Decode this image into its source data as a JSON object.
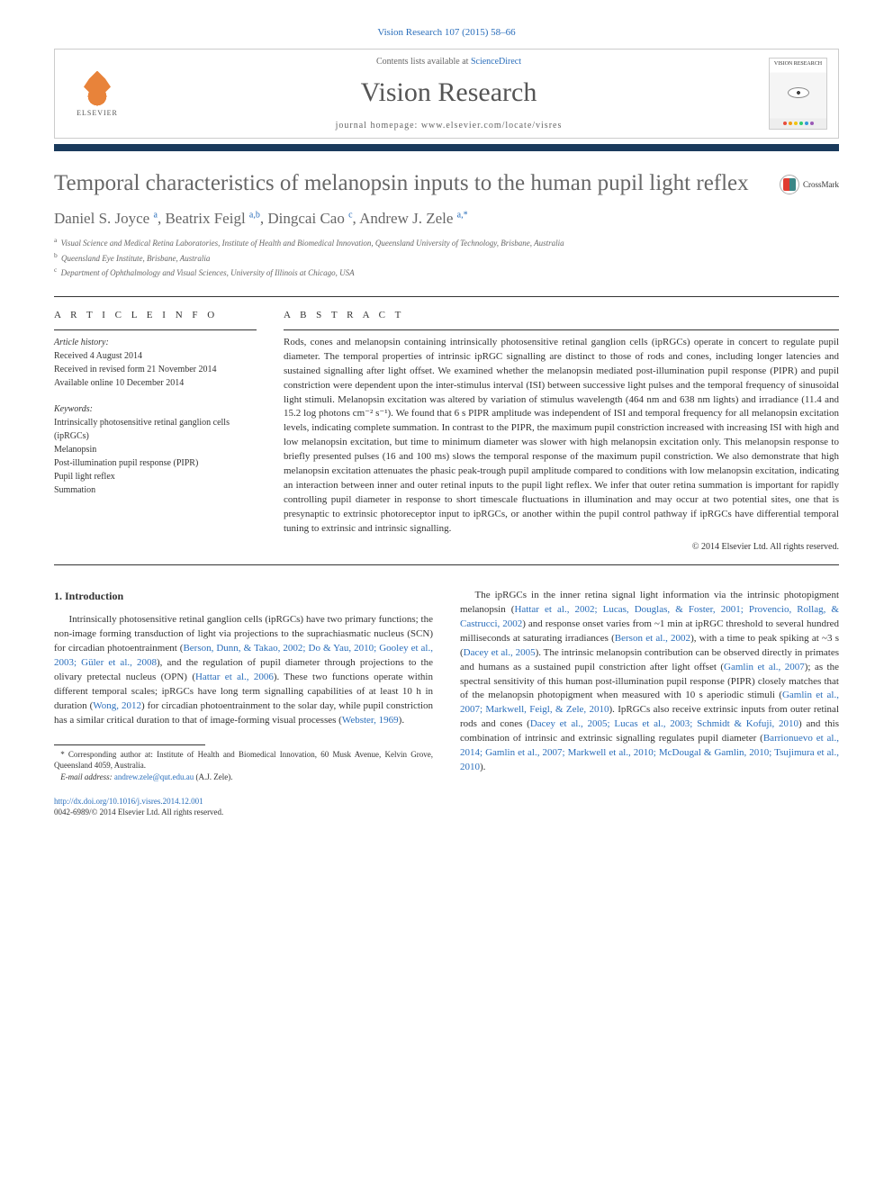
{
  "journal_ref": "Vision Research 107 (2015) 58–66",
  "header": {
    "publisher": "ELSEVIER",
    "contents_prefix": "Contents lists available at ",
    "contents_link": "ScienceDirect",
    "journal_name": "Vision Research",
    "homepage_prefix": "journal homepage: ",
    "homepage_url": "www.elsevier.com/locate/visres",
    "cover_title": "VISION RESEARCH"
  },
  "crossmark": "CrossMark",
  "title": "Temporal characteristics of melanopsin inputs to the human pupil light reflex",
  "authors_html": "Daniel S. Joyce <sup>a</sup>, Beatrix Feigl <sup>a,b</sup>, Dingcai Cao <sup>c</sup>, Andrew J. Zele <sup>a,*</sup>",
  "affiliations": [
    {
      "sup": "a",
      "text": "Visual Science and Medical Retina Laboratories, Institute of Health and Biomedical Innovation, Queensland University of Technology, Brisbane, Australia"
    },
    {
      "sup": "b",
      "text": "Queensland Eye Institute, Brisbane, Australia"
    },
    {
      "sup": "c",
      "text": "Department of Ophthalmology and Visual Sciences, University of Illinois at Chicago, USA"
    }
  ],
  "article_info_label": "A R T I C L E   I N F O",
  "abstract_label": "A B S T R A C T",
  "history": {
    "label": "Article history:",
    "received": "Received 4 August 2014",
    "revised": "Received in revised form 21 November 2014",
    "online": "Available online 10 December 2014"
  },
  "keywords": {
    "label": "Keywords:",
    "items": [
      "Intrinsically photosensitive retinal ganglion cells (ipRGCs)",
      "Melanopsin",
      "Post-illumination pupil response (PIPR)",
      "Pupil light reflex",
      "Summation"
    ]
  },
  "abstract": "Rods, cones and melanopsin containing intrinsically photosensitive retinal ganglion cells (ipRGCs) operate in concert to regulate pupil diameter. The temporal properties of intrinsic ipRGC signalling are distinct to those of rods and cones, including longer latencies and sustained signalling after light offset. We examined whether the melanopsin mediated post-illumination pupil response (PIPR) and pupil constriction were dependent upon the inter-stimulus interval (ISI) between successive light pulses and the temporal frequency of sinusoidal light stimuli. Melanopsin excitation was altered by variation of stimulus wavelength (464 nm and 638 nm lights) and irradiance (11.4 and 15.2 log photons cm⁻² s⁻¹). We found that 6 s PIPR amplitude was independent of ISI and temporal frequency for all melanopsin excitation levels, indicating complete summation. In contrast to the PIPR, the maximum pupil constriction increased with increasing ISI with high and low melanopsin excitation, but time to minimum diameter was slower with high melanopsin excitation only. This melanopsin response to briefly presented pulses (16 and 100 ms) slows the temporal response of the maximum pupil constriction. We also demonstrate that high melanopsin excitation attenuates the phasic peak-trough pupil amplitude compared to conditions with low melanopsin excitation, indicating an interaction between inner and outer retinal inputs to the pupil light reflex. We infer that outer retina summation is important for rapidly controlling pupil diameter in response to short timescale fluctuations in illumination and may occur at two potential sites, one that is presynaptic to extrinsic photoreceptor input to ipRGCs, or another within the pupil control pathway if ipRGCs have differential temporal tuning to extrinsic and intrinsic signalling.",
  "abstract_copyright": "© 2014 Elsevier Ltd. All rights reserved.",
  "intro": {
    "heading": "1. Introduction",
    "col1_p1_pre": "Intrinsically photosensitive retinal ganglion cells (ipRGCs) have two primary functions; the non-image forming transduction of light via projections to the suprachiasmatic nucleus (SCN) for circadian photoentrainment (",
    "col1_cite1": "Berson, Dunn, & Takao, 2002; Do & Yau, 2010; Gooley et al., 2003; Güler et al., 2008",
    "col1_p1_mid1": "), and the regulation of pupil diameter through projections to the olivary pretectal nucleus (OPN) (",
    "col1_cite2": "Hattar et al., 2006",
    "col1_p1_mid2": "). These two functions operate within different temporal scales; ipRGCs have long term signalling capabilities of at least 10 h in duration (",
    "col1_cite3": "Wong, 2012",
    "col1_p1_mid3": ") for circadian photoentrainment to the solar day, while pupil constriction has a similar critical duration to that of image-forming visual processes (",
    "col1_cite4": "Webster, 1969",
    "col1_p1_end": ").",
    "col2_p1_pre": "The ipRGCs in the inner retina signal light information via the intrinsic photopigment melanopsin (",
    "col2_cite1": "Hattar et al., 2002; Lucas, Douglas, & Foster, 2001; Provencio, Rollag, & Castrucci, 2002",
    "col2_p1_mid1": ") and response onset varies from ~1 min at ipRGC threshold to several hundred milliseconds at saturating irradiances (",
    "col2_cite2": "Berson et al., 2002",
    "col2_p1_mid2": "), with a time to peak spiking at ~3 s (",
    "col2_cite3": "Dacey et al., 2005",
    "col2_p1_mid3": "). The intrinsic melanopsin contribution can be observed directly in primates and humans as a sustained pupil constriction after light offset (",
    "col2_cite4": "Gamlin et al., 2007",
    "col2_p1_mid4": "); as the spectral sensitivity of this human post-illumination pupil response (PIPR) closely matches that of the melanopsin photopigment when measured with 10 s aperiodic stimuli (",
    "col2_cite5": "Gamlin et al., 2007; Markwell, Feigl, & Zele, 2010",
    "col2_p1_mid5": "). IpRGCs also receive extrinsic inputs from outer retinal rods and cones (",
    "col2_cite6": "Dacey et al., 2005; Lucas et al., 2003; Schmidt & Kofuji, 2010",
    "col2_p1_mid6": ") and this combination of intrinsic and extrinsic signalling regulates pupil diameter (",
    "col2_cite7": "Barrionuevo et al., 2014; Gamlin et al., 2007; Markwell et al., 2010; McDougal & Gamlin, 2010; Tsujimura et al., 2010",
    "col2_p1_end": ")."
  },
  "footnote": {
    "corr_label": "* Corresponding author at: ",
    "corr_text": "Institute of Health and Biomedical Innovation, 60 Musk Avenue, Kelvin Grove, Queensland 4059, Australia.",
    "email_label": "E-mail address: ",
    "email": "andrew.zele@qut.edu.au",
    "email_suffix": " (A.J. Zele)."
  },
  "doi": {
    "url": "http://dx.doi.org/10.1016/j.visres.2014.12.001",
    "issn_line": "0042-6989/© 2014 Elsevier Ltd. All rights reserved."
  },
  "colors": {
    "link": "#2a6ebb",
    "bar": "#1a3a5c",
    "cover_dots": [
      "#e74c3c",
      "#f39c12",
      "#f1c40f",
      "#2ecc71",
      "#3498db",
      "#9b59b6"
    ]
  }
}
